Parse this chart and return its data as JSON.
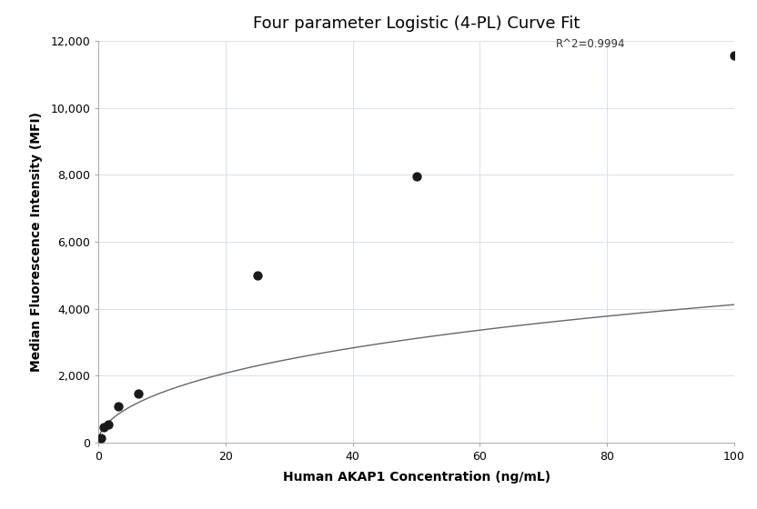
{
  "title": "Four parameter Logistic (4-PL) Curve Fit",
  "xlabel": "Human AKAP1 Concentration (ng/mL)",
  "ylabel": "Median Fluorescence Intensity (MFI)",
  "scatter_x": [
    0.4,
    0.78,
    1.56,
    3.13,
    6.25,
    25.0,
    50.0,
    100.0
  ],
  "scatter_y": [
    150,
    470,
    560,
    1100,
    1480,
    5000,
    7950,
    11550
  ],
  "r_squared": "R^2=0.9994",
  "xlim": [
    0,
    100
  ],
  "ylim": [
    0,
    12000
  ],
  "yticks": [
    0,
    2000,
    4000,
    6000,
    8000,
    10000,
    12000
  ],
  "xticks": [
    0,
    20,
    40,
    60,
    80,
    100
  ],
  "scatter_color": "#1a1a1a",
  "scatter_size": 55,
  "line_color": "#666666",
  "grid_color": "#d0dde8",
  "background_color": "#ffffff",
  "title_fontsize": 13,
  "label_fontsize": 10,
  "tick_fontsize": 9,
  "annotation_fontsize": 8.5,
  "4pl_A": 50.0,
  "4pl_B": 0.55,
  "4pl_C": 500.0,
  "4pl_D": 14000.0
}
